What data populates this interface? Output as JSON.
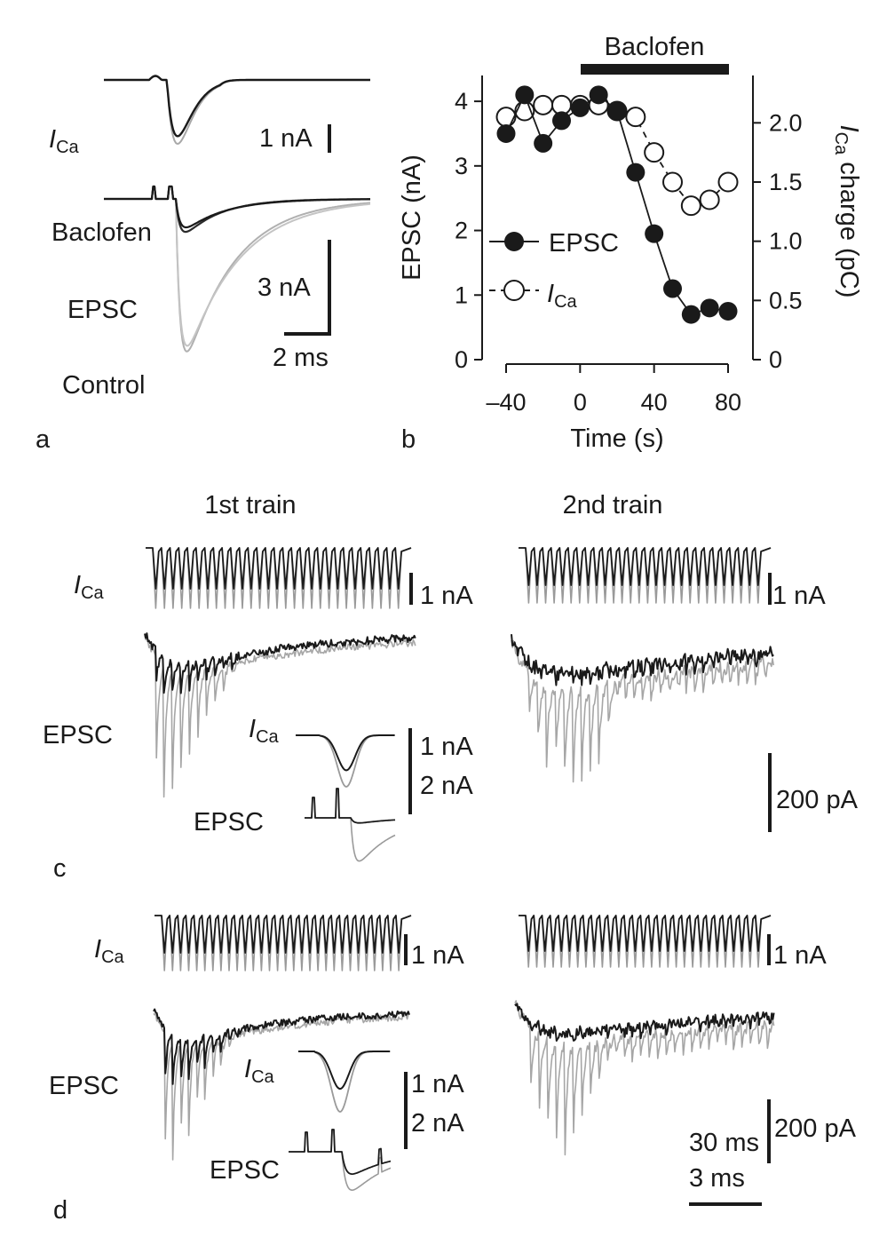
{
  "panel_a": {
    "letter": "a",
    "ica_label": "I",
    "ica_sub": "Ca",
    "scale_ica": "1 nA",
    "baclofen_label": "Baclofen",
    "epsc_label": "EPSC",
    "control_label": "Control",
    "scale_epsc": "3 nA",
    "scale_time": "2 ms"
  },
  "panel_b": {
    "letter": "b",
    "bar_label": "Baclofen",
    "xlabel": "Time (s)",
    "ylabel_left": "EPSC (nA)",
    "ylabel_right_pre": "I",
    "ylabel_right_sub": "Ca",
    "ylabel_right_post": " charge (pC)",
    "legend_epsc": "EPSC",
    "legend_ica": "I",
    "legend_ica_sub": "Ca",
    "x_ticks": [
      "–40",
      "0",
      "40",
      "80"
    ],
    "yl_ticks": [
      "0",
      "1",
      "2",
      "3",
      "4"
    ],
    "yr_ticks": [
      "0",
      "0.5",
      "1.0",
      "1.5",
      "2.0"
    ]
  },
  "panel_c": {
    "letter": "c",
    "train1_title": "1st train",
    "train2_title": "2nd train",
    "ica_label": "I",
    "ica_sub": "Ca",
    "scale_ica_1": "1 nA",
    "scale_ica_2": "1 nA",
    "epsc_label": "EPSC",
    "inset_ica": "I",
    "inset_ica_sub": "Ca",
    "inset_epsc": "EPSC",
    "inset_scale_1": "1 nA",
    "inset_scale_2": "2 nA",
    "scale_epsc_2": "200 pA"
  },
  "panel_d": {
    "letter": "d",
    "ica_label": "I",
    "ica_sub": "Ca",
    "scale_ica_1": "1 nA",
    "scale_ica_2": "1 nA",
    "epsc_label": "EPSC",
    "inset_ica": "I",
    "inset_ica_sub": "Ca",
    "inset_epsc": "EPSC",
    "inset_scale_1": "1 nA",
    "inset_scale_2": "2 nA",
    "scale_pa": "200 pA",
    "scale_30ms": "30 ms",
    "scale_3ms": "3 ms"
  },
  "chart_data": {
    "type": "scatter",
    "x": [
      -40,
      -30,
      -20,
      -10,
      0,
      10,
      20,
      30,
      40,
      50,
      60,
      70,
      80
    ],
    "series": [
      {
        "name": "EPSC",
        "axis": "left",
        "marker": "filled",
        "values": [
          3.5,
          4.1,
          3.35,
          3.7,
          3.9,
          4.1,
          3.85,
          2.9,
          1.95,
          1.1,
          0.7,
          0.8,
          0.75
        ]
      },
      {
        "name": "ICa",
        "axis": "right",
        "marker": "open",
        "values": [
          2.05,
          2.1,
          2.15,
          2.15,
          2.15,
          2.15,
          2.1,
          2.05,
          1.75,
          1.5,
          1.3,
          1.35,
          1.5
        ]
      }
    ],
    "xlim": [
      -40,
      80
    ],
    "ylim_left": [
      0,
      4.4
    ],
    "ylim_right": [
      0,
      2.4
    ],
    "baclofen_window": [
      0,
      80
    ]
  }
}
